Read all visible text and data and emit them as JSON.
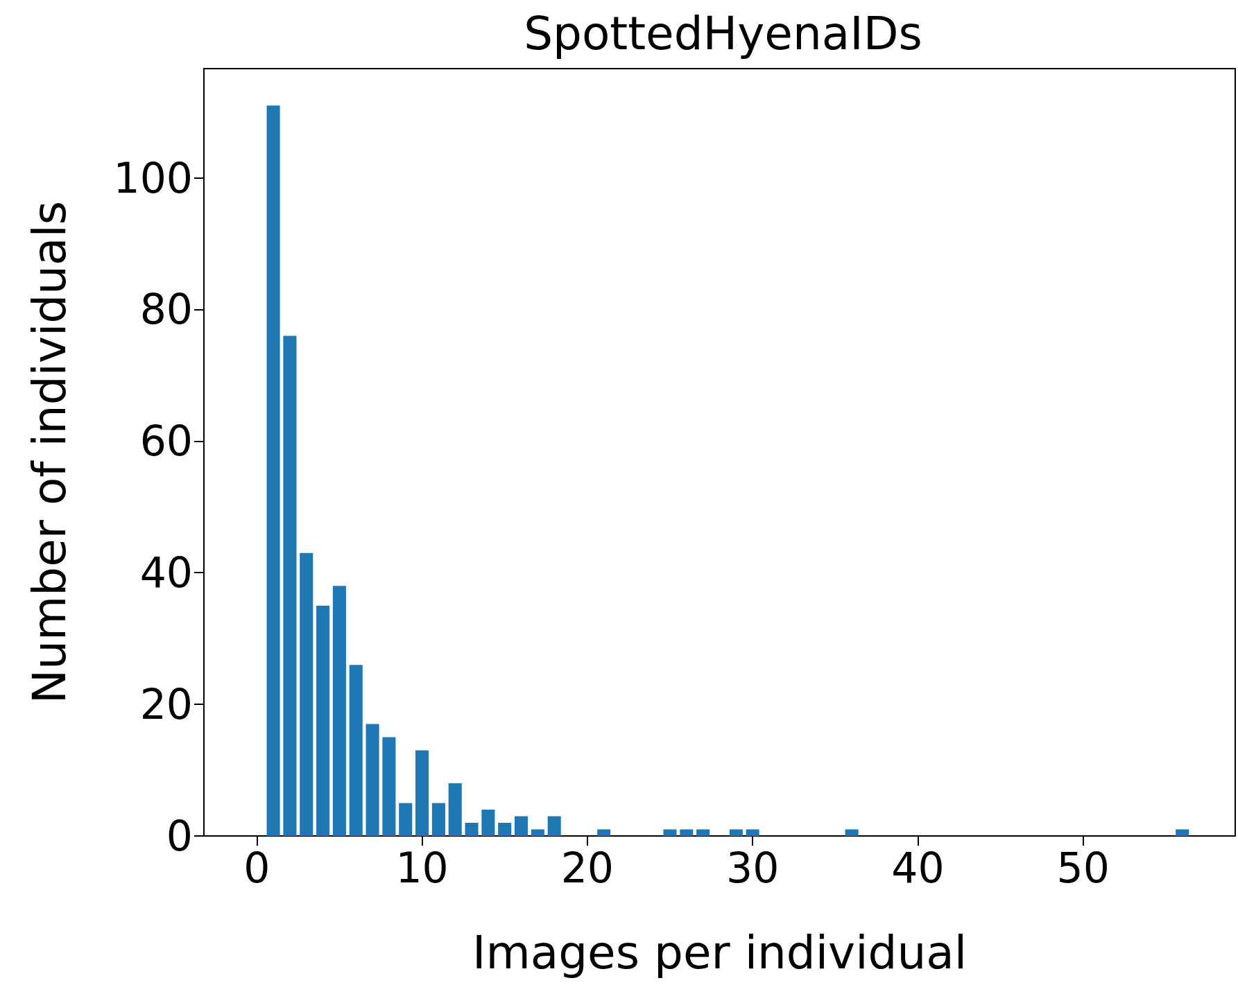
{
  "chart_data": {
    "type": "bar",
    "title": "SpottedHyenaIDs",
    "xlabel": "Images per individual",
    "ylabel": "Number of individuals",
    "x": [
      1,
      2,
      3,
      4,
      5,
      6,
      7,
      8,
      9,
      10,
      11,
      12,
      13,
      14,
      15,
      16,
      17,
      18,
      21,
      25,
      26,
      27,
      29,
      30,
      36,
      56
    ],
    "values": [
      111,
      76,
      43,
      35,
      38,
      26,
      17,
      15,
      5,
      13,
      5,
      8,
      2,
      4,
      2,
      3,
      1,
      3,
      1,
      1,
      1,
      1,
      1,
      1,
      1,
      1
    ],
    "color": "#1f77b4",
    "xlim": [
      -3.2,
      59.2
    ],
    "xticks": [
      0,
      10,
      20,
      30,
      40,
      50
    ],
    "ylim": [
      0,
      116.6
    ],
    "yticks": [
      0,
      20,
      40,
      60,
      80,
      100
    ]
  }
}
